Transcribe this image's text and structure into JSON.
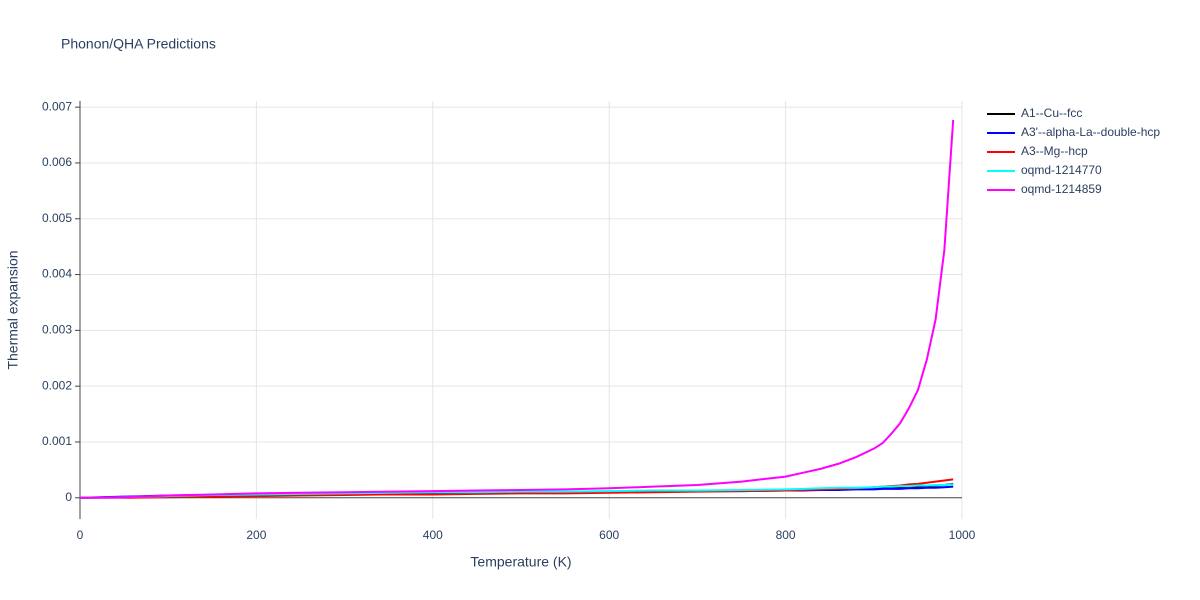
{
  "chart_data": {
    "type": "line",
    "title": "Phonon/QHA Predictions",
    "x_label": "Temperature (K)",
    "y_label": "Thermal expansion",
    "x": [
      0,
      50,
      100,
      150,
      200,
      250,
      300,
      350,
      400,
      450,
      500,
      550,
      600,
      650,
      700,
      750,
      800,
      820,
      840,
      860,
      880,
      900,
      910,
      920,
      930,
      940,
      950,
      960,
      970,
      980,
      990
    ],
    "xlim": [
      0,
      1000
    ],
    "xticks": [
      0,
      200,
      400,
      600,
      800,
      1000
    ],
    "ylim": [
      -0.00038,
      0.00711
    ],
    "yticks": [
      0,
      0.001,
      0.002,
      0.003,
      0.004,
      0.005,
      0.006,
      0.007
    ],
    "grid": true,
    "legend": "right",
    "series": [
      {
        "name": "A1--Cu--fcc",
        "color": "#000000",
        "values": [
          0,
          1e-05,
          3e-05,
          4e-05,
          5e-05,
          6e-05,
          7e-05,
          8e-05,
          8e-05,
          9e-05,
          0.0001,
          0.0001,
          0.00011,
          0.00012,
          0.00012,
          0.00013,
          0.00014,
          0.00014,
          0.00015,
          0.00015,
          0.00016,
          0.00017,
          0.00017,
          0.00018,
          0.00018,
          0.00019,
          0.0002,
          0.00021,
          0.00022,
          0.00023,
          0.00025
        ]
      },
      {
        "name": "A3'--alpha-La--double-hcp",
        "color": "#0000ff",
        "values": [
          0,
          2e-05,
          4e-05,
          5e-05,
          6e-05,
          7e-05,
          8e-05,
          8e-05,
          9e-05,
          9e-05,
          0.0001,
          0.0001,
          0.00011,
          0.00011,
          0.00012,
          0.00012,
          0.00013,
          0.00013,
          0.00014,
          0.00014,
          0.00015,
          0.00015,
          0.00016,
          0.00016,
          0.00016,
          0.00017,
          0.00017,
          0.00018,
          0.00018,
          0.00019,
          0.0002
        ]
      },
      {
        "name": "A3--Mg--hcp",
        "color": "#ff0000",
        "values": [
          0,
          0,
          1e-05,
          2e-05,
          3e-05,
          4e-05,
          5e-05,
          6e-05,
          6e-05,
          7e-05,
          8e-05,
          8e-05,
          9e-05,
          0.0001,
          0.00011,
          0.00012,
          0.00013,
          0.00014,
          0.00015,
          0.00016,
          0.00017,
          0.00019,
          0.0002,
          0.00021,
          0.00022,
          0.00024,
          0.00025,
          0.00027,
          0.00029,
          0.00031,
          0.00033
        ]
      },
      {
        "name": "oqmd-1214770",
        "color": "#00ffff",
        "values": [
          0,
          1e-05,
          3e-05,
          5e-05,
          6e-05,
          7e-05,
          8e-05,
          9e-05,
          0.0001,
          0.0001,
          0.00011,
          0.00011,
          0.00012,
          0.00013,
          0.00013,
          0.00014,
          0.00015,
          0.00016,
          0.00017,
          0.00018,
          0.00018,
          0.00019,
          0.0002,
          0.0002,
          0.00021,
          0.00021,
          0.00022,
          0.00022,
          0.00023,
          0.00023,
          0.00024
        ]
      },
      {
        "name": "oqmd-1214859",
        "color": "#ff00ff",
        "values": [
          0,
          1e-05,
          4e-05,
          6e-05,
          8e-05,
          9e-05,
          0.0001,
          0.00011,
          0.00012,
          0.00013,
          0.00014,
          0.00015,
          0.00017,
          0.0002,
          0.00023,
          0.00029,
          0.00038,
          0.00045,
          0.00052,
          0.00061,
          0.00073,
          0.00088,
          0.00098,
          0.00115,
          0.00134,
          0.00161,
          0.00193,
          0.00247,
          0.00319,
          0.00444,
          0.00677
        ]
      }
    ]
  }
}
